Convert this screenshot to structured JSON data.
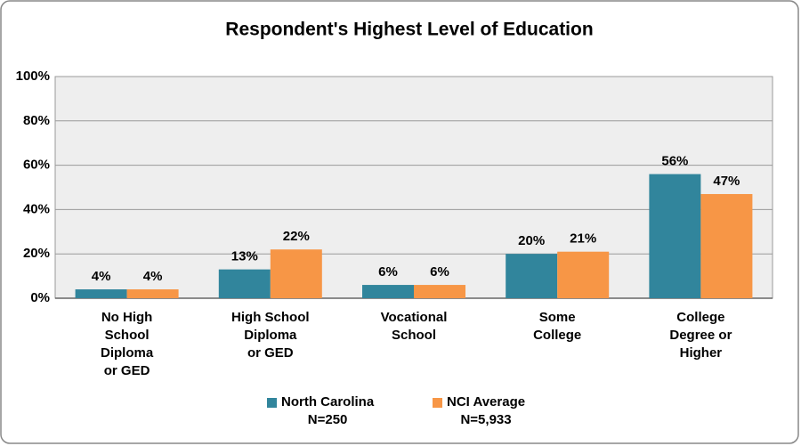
{
  "chart_data": {
    "type": "bar",
    "title": "Respondent's Highest Level of Education",
    "categories": [
      "No High\nSchool\nDiploma\nor GED",
      "High School\nDiploma\nor GED",
      "Vocational\nSchool",
      "Some\nCollege",
      "College\nDegree or\nHigher"
    ],
    "series": [
      {
        "name": "North Carolina\nN=250",
        "color": "#31859c",
        "values": [
          4,
          13,
          6,
          20,
          56
        ],
        "value_labels": [
          "4%",
          "13%",
          "6%",
          "20%",
          "56%"
        ]
      },
      {
        "name": "NCI Average\nN=5,933",
        "color": "#f79646",
        "values": [
          4,
          22,
          6,
          21,
          47
        ],
        "value_labels": [
          "4%",
          "22%",
          "6%",
          "21%",
          "47%"
        ]
      }
    ],
    "ylim": [
      0,
      100
    ],
    "yticks": [
      {
        "value": 0,
        "label": "0%"
      },
      {
        "value": 20,
        "label": "20%"
      },
      {
        "value": 40,
        "label": "40%"
      },
      {
        "value": 60,
        "label": "60%"
      },
      {
        "value": 80,
        "label": "80%"
      },
      {
        "value": 100,
        "label": "100%"
      }
    ],
    "grid": true,
    "legend": "bottom"
  }
}
